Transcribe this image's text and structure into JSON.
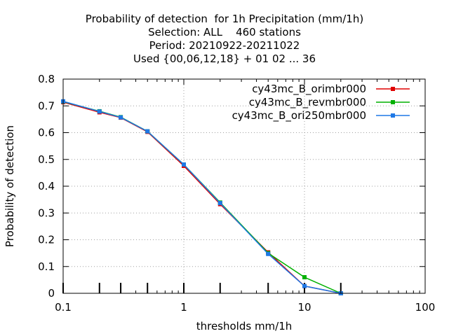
{
  "chart_data": {
    "type": "line",
    "title_lines": [
      "Probability of detection  for 1h Precipitation (mm/1h)",
      "Selection: ALL    460 stations",
      "Period: 20210922-20211022",
      "Used {00,06,12,18} + 01 02 ... 36"
    ],
    "xlabel": "thresholds mm/1h",
    "ylabel": "Probability of detection",
    "x_scale": "log",
    "xlim": [
      0.1,
      100
    ],
    "ylim": [
      0,
      0.8
    ],
    "x_ticks": [
      0.1,
      1,
      10,
      100
    ],
    "x_tick_labels": [
      "0.1",
      "1",
      "10",
      "100"
    ],
    "y_ticks": [
      0,
      0.1,
      0.2,
      0.3,
      0.4,
      0.5,
      0.6,
      0.7,
      0.8
    ],
    "y_tick_labels": [
      "0",
      "0.1",
      "0.2",
      "0.3",
      "0.4",
      "0.5",
      "0.6",
      "0.7",
      "0.8"
    ],
    "x_data_ticks": [
      0.1,
      0.2,
      0.3,
      0.5,
      1,
      2,
      5,
      10,
      20
    ],
    "grid": true,
    "legend_position": "top-right",
    "series": [
      {
        "name": "cy43mc_B_orimbr000",
        "color": "#e00000",
        "x": [
          0.1,
          0.2,
          0.3,
          0.5,
          1,
          2,
          5,
          10,
          20
        ],
        "y": [
          0.714,
          0.676,
          0.656,
          0.603,
          0.476,
          0.333,
          0.153,
          0.027,
          0.0
        ]
      },
      {
        "name": "cy43mc_B_revmbr000",
        "color": "#00b000",
        "x": [
          0.1,
          0.2,
          0.3,
          0.5,
          1,
          2,
          5,
          10,
          20
        ],
        "y": [
          0.716,
          0.68,
          0.658,
          0.605,
          0.481,
          0.339,
          0.15,
          0.06,
          0.0
        ]
      },
      {
        "name": "cy43mc_B_ori250mbr000",
        "color": "#1e78e6",
        "x": [
          0.1,
          0.2,
          0.3,
          0.5,
          1,
          2,
          5,
          10,
          20
        ],
        "y": [
          0.717,
          0.679,
          0.657,
          0.605,
          0.481,
          0.337,
          0.147,
          0.027,
          0.0
        ]
      }
    ]
  }
}
